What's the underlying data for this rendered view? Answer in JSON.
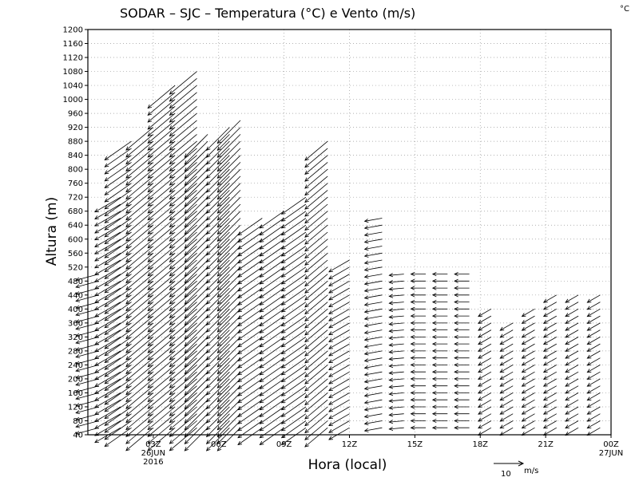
{
  "chart_data": {
    "type": "wind-barb-profile",
    "title": "SODAR – SJC – Temperatura (°C) e Vento (m/s)",
    "unit_corner": "°C",
    "xlabel": "Hora (local)",
    "ylabel": "Altura (m)",
    "ylim": [
      40,
      1200
    ],
    "y_ticks": [
      40,
      80,
      120,
      160,
      200,
      240,
      280,
      320,
      360,
      400,
      440,
      480,
      520,
      560,
      600,
      640,
      680,
      720,
      760,
      800,
      840,
      880,
      920,
      960,
      1000,
      1040,
      1080,
      1120,
      1160,
      1200
    ],
    "x_range_hours": [
      0,
      24
    ],
    "x_ticks": [
      {
        "hour": 3,
        "label": "03Z",
        "sub1": "26JUN",
        "sub2": "2016"
      },
      {
        "hour": 6,
        "label": "06Z",
        "sub1": "",
        "sub2": ""
      },
      {
        "hour": 9,
        "label": "09Z",
        "sub1": "",
        "sub2": ""
      },
      {
        "hour": 12,
        "label": "12Z",
        "sub1": "",
        "sub2": ""
      },
      {
        "hour": 15,
        "label": "15Z",
        "sub1": "",
        "sub2": ""
      },
      {
        "hour": 18,
        "label": "18Z",
        "sub1": "",
        "sub2": ""
      },
      {
        "hour": 21,
        "label": "21Z",
        "sub1": "",
        "sub2": ""
      },
      {
        "hour": 24,
        "label": "00Z",
        "sub1": "27JUN",
        "sub2": ""
      }
    ],
    "grid": true,
    "reference_vector": {
      "label": "10",
      "unit": "m/s"
    },
    "profiles": [
      {
        "hour": 0.5,
        "top": 500,
        "dir": 75,
        "speed": 8
      },
      {
        "hour": 1.5,
        "top": 720,
        "dir": 60,
        "speed": 10
      },
      {
        "hour": 2.0,
        "top": 880,
        "dir": 55,
        "speed": 11
      },
      {
        "hour": 3.0,
        "top": 920,
        "dir": 50,
        "speed": 12
      },
      {
        "hour": 4.0,
        "top": 1040,
        "dir": 50,
        "speed": 12
      },
      {
        "hour": 5.0,
        "top": 1080,
        "dir": 50,
        "speed": 12
      },
      {
        "hour": 5.5,
        "top": 900,
        "dir": 45,
        "speed": 11
      },
      {
        "hour": 6.5,
        "top": 920,
        "dir": 45,
        "speed": 11
      },
      {
        "hour": 7.0,
        "top": 940,
        "dir": 45,
        "speed": 11
      },
      {
        "hour": 8.0,
        "top": 660,
        "dir": 55,
        "speed": 10
      },
      {
        "hour": 9.0,
        "top": 680,
        "dir": 55,
        "speed": 10
      },
      {
        "hour": 10.0,
        "top": 720,
        "dir": 55,
        "speed": 10
      },
      {
        "hour": 11.0,
        "top": 880,
        "dir": 50,
        "speed": 10
      },
      {
        "hour": 12.0,
        "top": 540,
        "dir": 60,
        "speed": 8
      },
      {
        "hour": 13.5,
        "top": 660,
        "dir": 80,
        "speed": 6
      },
      {
        "hour": 14.5,
        "top": 500,
        "dir": 85,
        "speed": 5
      },
      {
        "hour": 15.5,
        "top": 500,
        "dir": 90,
        "speed": 5
      },
      {
        "hour": 16.5,
        "top": 500,
        "dir": 90,
        "speed": 5
      },
      {
        "hour": 17.5,
        "top": 500,
        "dir": 90,
        "speed": 5
      },
      {
        "hour": 18.5,
        "top": 400,
        "dir": 60,
        "speed": 5
      },
      {
        "hour": 19.5,
        "top": 360,
        "dir": 60,
        "speed": 5
      },
      {
        "hour": 20.5,
        "top": 400,
        "dir": 60,
        "speed": 5
      },
      {
        "hour": 21.5,
        "top": 440,
        "dir": 60,
        "speed": 5
      },
      {
        "hour": 22.5,
        "top": 440,
        "dir": 60,
        "speed": 5
      },
      {
        "hour": 23.5,
        "top": 440,
        "dir": 60,
        "speed": 5
      }
    ]
  }
}
